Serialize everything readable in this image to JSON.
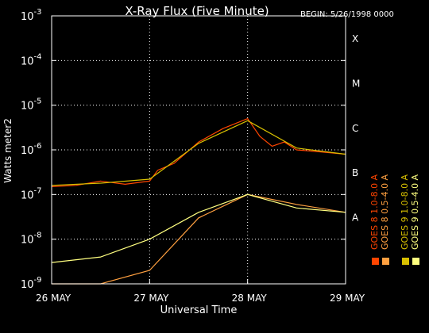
{
  "chart_data": {
    "type": "line",
    "title": "X-Ray Flux (Five Minute)",
    "begin_label": "BEGIN: 5/26/1998 0000",
    "xlabel": "Universal Time",
    "ylabel": "Watts meter2",
    "y_scale": "log",
    "ylim": [
      1e-09,
      0.001
    ],
    "xlim": [
      "1998-05-26",
      "1998-05-29"
    ],
    "x_ticks": [
      "26 MAY",
      "27 MAY",
      "28 MAY",
      "29 MAY"
    ],
    "x_tick_values": [
      "1998-05-26",
      "1998-05-27",
      "1998-05-28",
      "1998-05-29"
    ],
    "y_ticks": [
      {
        "value": 0.001,
        "base": "10",
        "exp": "-3"
      },
      {
        "value": 0.0001,
        "base": "10",
        "exp": "-4"
      },
      {
        "value": 1e-05,
        "base": "10",
        "exp": "-5"
      },
      {
        "value": 1e-06,
        "base": "10",
        "exp": "-6"
      },
      {
        "value": 1e-07,
        "base": "10",
        "exp": "-7"
      },
      {
        "value": 1e-08,
        "base": "10",
        "exp": "-8"
      },
      {
        "value": 1e-09,
        "base": "10",
        "exp": "-9"
      }
    ],
    "flare_classes": [
      {
        "label": "X",
        "value": 0.000316
      },
      {
        "label": "M",
        "value": 3.16e-05
      },
      {
        "label": "C",
        "value": 3.16e-06
      },
      {
        "label": "B",
        "value": 3.16e-07
      },
      {
        "label": "A",
        "value": 3.16e-08
      }
    ],
    "grid": true,
    "legend_position": "right",
    "series": [
      {
        "name": "GOES 8 1.0-8.0 A",
        "color": "#ff4500",
        "x": [
          "1998-05-26 00:00",
          "1998-05-26 06:00",
          "1998-05-26 12:00",
          "1998-05-26 18:00",
          "1998-05-27 00:00",
          "1998-05-27 02:00",
          "1998-05-27 06:00",
          "1998-05-27 12:00",
          "1998-05-27 18:00",
          "1998-05-28 00:00",
          "1998-05-28 03:00",
          "1998-05-28 06:00",
          "1998-05-28 09:00",
          "1998-05-28 12:00",
          "1998-05-28 18:00",
          "1998-05-29 00:00"
        ],
        "values": [
          1.5e-07,
          1.6e-07,
          2e-07,
          1.7e-07,
          2e-07,
          3.5e-07,
          5e-07,
          1.5e-06,
          3e-06,
          5e-06,
          2e-06,
          1.2e-06,
          1.5e-06,
          1e-06,
          9e-07,
          8e-07
        ]
      },
      {
        "name": "GOES 8 0.5-4.0 A",
        "color": "#ffa040",
        "x": [
          "1998-05-26 00:00",
          "1998-05-26 12:00",
          "1998-05-27 00:00",
          "1998-05-27 12:00",
          "1998-05-28 00:00",
          "1998-05-28 12:00",
          "1998-05-29 00:00"
        ],
        "values": [
          1e-09,
          1e-09,
          2e-09,
          3e-08,
          1e-07,
          6e-08,
          4e-08
        ]
      },
      {
        "name": "GOES 9 1.0-8.0 A",
        "color": "#d8c000",
        "x": [
          "1998-05-26 00:00",
          "1998-05-26 12:00",
          "1998-05-27 00:00",
          "1998-05-27 12:00",
          "1998-05-28 00:00",
          "1998-05-28 12:00",
          "1998-05-29 00:00"
        ],
        "values": [
          1.6e-07,
          1.8e-07,
          2.2e-07,
          1.4e-06,
          4.5e-06,
          1.1e-06,
          8e-07
        ]
      },
      {
        "name": "GOES 9 0.5-4.0 A",
        "color": "#ffff80",
        "x": [
          "1998-05-26 00:00",
          "1998-05-26 12:00",
          "1998-05-27 00:00",
          "1998-05-27 12:00",
          "1998-05-28 00:00",
          "1998-05-28 12:00",
          "1998-05-29 00:00"
        ],
        "values": [
          3e-09,
          4e-09,
          1e-08,
          4e-08,
          1e-07,
          5e-08,
          4e-08
        ]
      }
    ]
  }
}
